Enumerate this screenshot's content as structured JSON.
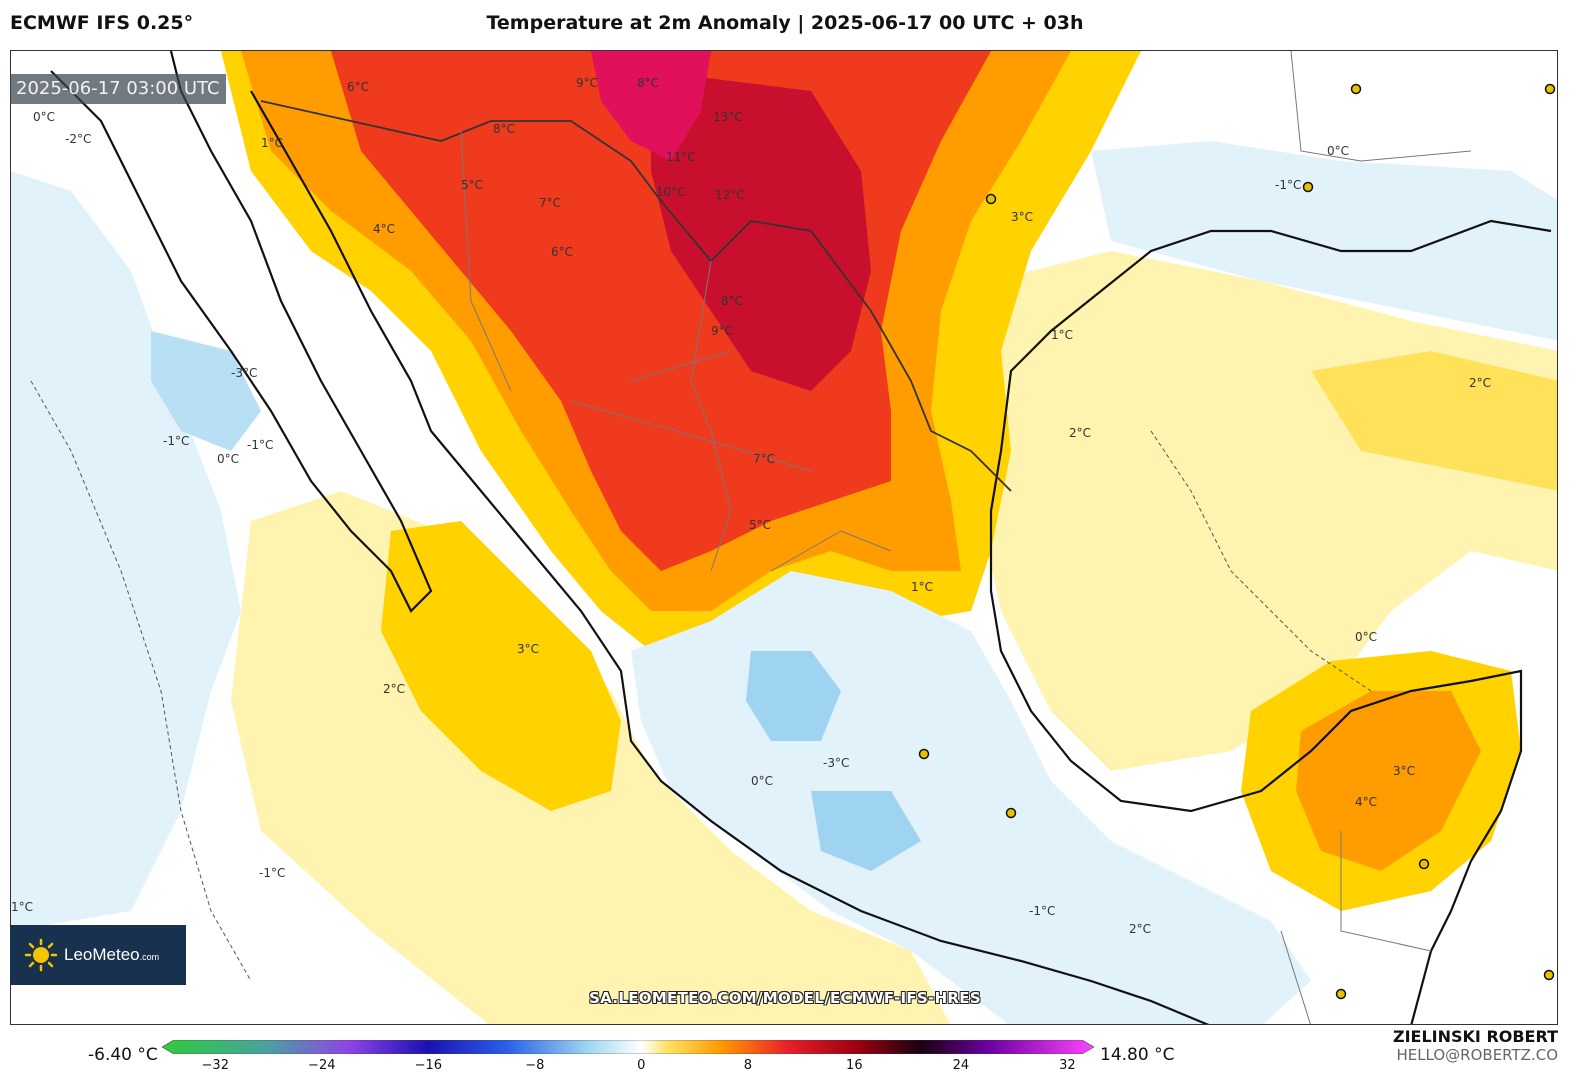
{
  "header": {
    "model": "ECMWF IFS 0.25°",
    "title": "Temperature at 2m Anomaly | 2025-06-17 00 UTC + 03h"
  },
  "timestamp": "2025-06-17 03:00 UTC",
  "branding": {
    "logo_name": "LeoMeteo",
    "logo_bold": "Meteo",
    "logo_suffix": ".com",
    "source_url": "SA.LEOMETEO.COM/MODEL/ECMWF-IFS-HRES",
    "author": "ZIELINSKI ROBERT",
    "email": "HELLO@ROBERTZ.CO"
  },
  "colorbar": {
    "min_label": "-6.40 °C",
    "max_label": "14.80 °C",
    "ticks": [
      "−32",
      "−24",
      "−16",
      "−8",
      "0",
      "8",
      "16",
      "24",
      "32"
    ],
    "tick_values": [
      -32,
      -24,
      -16,
      -8,
      0,
      8,
      16,
      24,
      32
    ],
    "range": [
      -36,
      34
    ],
    "stops": [
      {
        "v": -36,
        "c": "#2ecc3c"
      },
      {
        "v": -28,
        "c": "#4aa0a0"
      },
      {
        "v": -22,
        "c": "#8e44e6"
      },
      {
        "v": -16,
        "c": "#1c10b0"
      },
      {
        "v": -10,
        "c": "#2a62e8"
      },
      {
        "v": -4,
        "c": "#9fd6f0"
      },
      {
        "v": 0,
        "c": "#ffffff"
      },
      {
        "v": 2,
        "c": "#ffe066"
      },
      {
        "v": 6,
        "c": "#ff9a00"
      },
      {
        "v": 11,
        "c": "#e8202a"
      },
      {
        "v": 16,
        "c": "#a0000f"
      },
      {
        "v": 21,
        "c": "#1a0010"
      },
      {
        "v": 26,
        "c": "#6a00a0"
      },
      {
        "v": 34,
        "c": "#ff44ff"
      }
    ]
  },
  "colors": {
    "warm_light": "#fff3b0",
    "warm_yellow": "#ffd200",
    "warm_orange": "#ff9d00",
    "warm_red": "#f03a1e",
    "warm_dark": "#c8102e",
    "cool_light": "#e2f2fb",
    "cool_blue": "#9fd3f2",
    "brand_bg": "#17314f"
  },
  "map_labels": [
    "13°C",
    "12°C",
    "11°C",
    "10°C",
    "9°C",
    "9°C",
    "8°C",
    "8°C",
    "8°C",
    "7°C",
    "7°C",
    "6°C",
    "6°C",
    "5°C",
    "5°C",
    "4°C",
    "4°C",
    "3°C",
    "3°C",
    "3°C",
    "2°C",
    "2°C",
    "2°C",
    "2°C",
    "1°C",
    "1°C",
    "1°C",
    "1°C",
    "0°C",
    "0°C",
    "0°C",
    "0°C",
    "0°C",
    "-1°C",
    "-1°C",
    "-1°C",
    "-1°C",
    "-1°C",
    "-2°C",
    "-3°C",
    "-3°C"
  ],
  "cities": [
    "city",
    "city",
    "city",
    "city",
    "city",
    "city",
    "city",
    "city",
    "city"
  ]
}
